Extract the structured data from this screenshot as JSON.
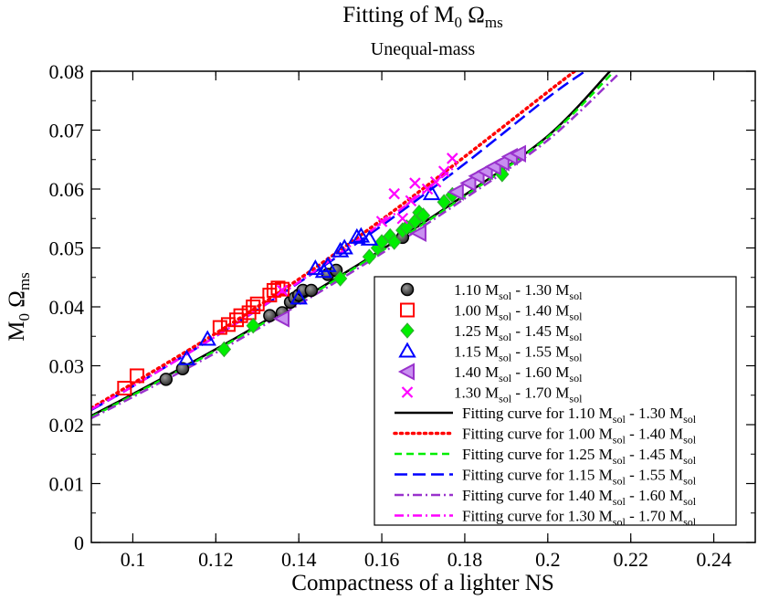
{
  "chart_data": {
    "type": "scatter",
    "title": {
      "base": "Fitting of M",
      "sub1": "0",
      "mid": " Ω",
      "sub2": "ms"
    },
    "subtitle": "Unequal-mass",
    "xlabel": "Compactness of a lighter NS",
    "ylabel": {
      "base": "M",
      "sub1": "0",
      "mid": " Ω",
      "sub2": "ms"
    },
    "xlim": [
      0.09,
      0.25
    ],
    "ylim": [
      0,
      0.08
    ],
    "xticks": [
      0.1,
      0.12,
      0.14,
      0.16,
      0.18,
      0.2,
      0.22,
      0.24
    ],
    "yticks": [
      0,
      0.01,
      0.02,
      0.03,
      0.04,
      0.05,
      0.06,
      0.07,
      0.08
    ],
    "xticklabels": [
      "0.1",
      "0.12",
      "0.14",
      "0.16",
      "0.18",
      "0.2",
      "0.22",
      "0.24"
    ],
    "yticklabels": [
      "0",
      "0.01",
      "0.02",
      "0.03",
      "0.04",
      "0.05",
      "0.06",
      "0.07",
      "0.08"
    ],
    "legend_position": "bottom-right",
    "series": [
      {
        "name": "1.10 Msol - 1.30 Msol",
        "m1": "1.10",
        "m2": "1.30",
        "marker": "circle",
        "color": "#000000",
        "x": [
          0.108,
          0.112,
          0.133,
          0.136,
          0.138,
          0.139,
          0.14,
          0.141,
          0.143,
          0.147,
          0.149,
          0.165
        ],
        "y": [
          0.0277,
          0.0295,
          0.0385,
          0.039,
          0.0408,
          0.0415,
          0.042,
          0.0428,
          0.0428,
          0.0455,
          0.0462,
          0.0518
        ]
      },
      {
        "name": "1.00 Msol - 1.40 Msol",
        "m1": "1.00",
        "m2": "1.40",
        "marker": "square",
        "color": "#ff0000",
        "x": [
          0.098,
          0.101,
          0.121,
          0.123,
          0.125,
          0.126,
          0.128,
          0.129,
          0.13,
          0.133,
          0.134,
          0.135,
          0.136
        ],
        "y": [
          0.0262,
          0.0283,
          0.0365,
          0.037,
          0.0378,
          0.0385,
          0.039,
          0.04,
          0.0405,
          0.042,
          0.0428,
          0.0432,
          0.043
        ]
      },
      {
        "name": "1.25 Msol - 1.45 Msol",
        "m1": "1.25",
        "m2": "1.45",
        "marker": "diamond",
        "color": "#00ee00",
        "x": [
          0.122,
          0.129,
          0.15,
          0.157,
          0.159,
          0.16,
          0.162,
          0.163,
          0.165,
          0.166,
          0.168,
          0.169,
          0.17,
          0.175,
          0.177,
          0.189
        ],
        "y": [
          0.0328,
          0.0368,
          0.0448,
          0.0485,
          0.05,
          0.051,
          0.052,
          0.051,
          0.053,
          0.0535,
          0.0545,
          0.056,
          0.0555,
          0.0578,
          0.059,
          0.0625
        ]
      },
      {
        "name": "1.15 Msol - 1.55 Msol",
        "m1": "1.15",
        "m2": "1.55",
        "marker": "triangle-up",
        "color": "#0000ff",
        "x": [
          0.113,
          0.118,
          0.14,
          0.144,
          0.146,
          0.147,
          0.15,
          0.151,
          0.154,
          0.155,
          0.157,
          0.172
        ],
        "y": [
          0.0312,
          0.0345,
          0.0415,
          0.0465,
          0.046,
          0.047,
          0.0495,
          0.05,
          0.0518,
          0.052,
          0.0515,
          0.0592
        ]
      },
      {
        "name": "1.40 Msol - 1.60 Msol",
        "m1": "1.40",
        "m2": "1.60",
        "marker": "triangle-left",
        "color": "#9932cc",
        "x": [
          0.136,
          0.169,
          0.178,
          0.181,
          0.183,
          0.185,
          0.187,
          0.189,
          0.191,
          0.193
        ],
        "y": [
          0.038,
          0.0525,
          0.0595,
          0.061,
          0.0622,
          0.063,
          0.0638,
          0.0645,
          0.0655,
          0.066
        ]
      },
      {
        "name": "1.30 Msol - 1.70 Msol",
        "m1": "1.30",
        "m2": "1.70",
        "marker": "x",
        "color": "#ff00ff",
        "x": [
          0.136,
          0.16,
          0.163,
          0.165,
          0.167,
          0.168,
          0.171,
          0.173,
          0.175,
          0.177
        ],
        "y": [
          0.0428,
          0.0545,
          0.0592,
          0.055,
          0.058,
          0.061,
          0.06,
          0.0612,
          0.063,
          0.0652
        ]
      }
    ],
    "fits": [
      {
        "name": "Fitting curve for 1.10 Msol - 1.30 Msol",
        "m1": "1.10",
        "m2": "1.30",
        "color": "#000000",
        "dash": "",
        "width": 2.5,
        "x": [
          0.09,
          0.1,
          0.12,
          0.14,
          0.16,
          0.18,
          0.2,
          0.215
        ],
        "y": [
          0.0215,
          0.0252,
          0.0328,
          0.041,
          0.0497,
          0.059,
          0.069,
          0.08
        ]
      },
      {
        "name": "Fitting curve for 1.00 Msol - 1.40 Msol",
        "m1": "1.00",
        "m2": "1.40",
        "color": "#ff0000",
        "dash": "2,4.5",
        "width": 3.5,
        "x": [
          0.09,
          0.1,
          0.12,
          0.14,
          0.16,
          0.18,
          0.2,
          0.2065
        ],
        "y": [
          0.0228,
          0.027,
          0.0355,
          0.0447,
          0.0548,
          0.0655,
          0.0765,
          0.08
        ]
      },
      {
        "name": "Fitting curve for 1.25 Msol - 1.45 Msol",
        "m1": "1.25",
        "m2": "1.45",
        "color": "#00ee00",
        "dash": "8,5",
        "width": 2.5,
        "x": [
          0.09,
          0.1,
          0.12,
          0.14,
          0.16,
          0.18,
          0.2,
          0.216
        ],
        "y": [
          0.0213,
          0.025,
          0.0326,
          0.0408,
          0.0495,
          0.0588,
          0.0688,
          0.08
        ]
      },
      {
        "name": "Fitting curve for 1.15 Msol - 1.55 Msol",
        "m1": "1.15",
        "m2": "1.55",
        "color": "#0000ff",
        "dash": "14,6",
        "width": 2.5,
        "x": [
          0.09,
          0.1,
          0.12,
          0.14,
          0.16,
          0.18,
          0.2,
          0.209
        ],
        "y": [
          0.0225,
          0.0265,
          0.035,
          0.0441,
          0.0538,
          0.0643,
          0.0755,
          0.08
        ]
      },
      {
        "name": "Fitting curve for 1.40 Msol - 1.60 Msol",
        "m1": "1.40",
        "m2": "1.60",
        "color": "#9932cc",
        "dash": "10,4,2,4",
        "width": 2.5,
        "x": [
          0.09,
          0.1,
          0.12,
          0.14,
          0.16,
          0.18,
          0.2,
          0.217
        ],
        "y": [
          0.0211,
          0.0247,
          0.0322,
          0.0404,
          0.0491,
          0.0584,
          0.0683,
          0.0795
        ]
      },
      {
        "name": "Fitting curve for 1.30 Msol - 1.70 Msol",
        "m1": "1.30",
        "m2": "1.70",
        "color": "#ff00ff",
        "dash": "10,4,2,4",
        "width": 2.5,
        "x": [
          0.09,
          0.1,
          0.12,
          0.14,
          0.16,
          0.17,
          0.178
        ],
        "y": [
          0.0226,
          0.0265,
          0.035,
          0.0442,
          0.0542,
          0.0595,
          0.064
        ]
      }
    ]
  }
}
